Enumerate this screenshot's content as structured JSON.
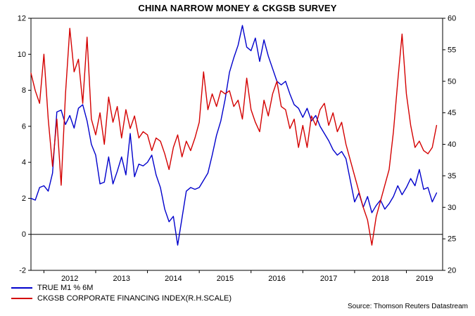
{
  "chart": {
    "title": "CHINA NARROW MONEY & CKGSB SURVEY",
    "source": "Source: Thomson Reuters Datastream"
  },
  "chart_data": {
    "type": "line",
    "title": "CHINA NARROW MONEY & CKGSB SURVEY",
    "grid": false,
    "legend_position": "bottom-left",
    "source": "Source: Thomson Reuters Datastream",
    "x_start": 2011.75,
    "x_step": 0.0833333,
    "x_range": [
      2011.75,
      2019.7
    ],
    "x_ticks": [
      2012,
      2013,
      2014,
      2015,
      2016,
      2017,
      2018,
      2019
    ],
    "left_axis": {
      "ylim": [
        -2,
        12
      ],
      "ticks": [
        -2,
        0,
        2,
        4,
        6,
        8,
        10,
        12
      ]
    },
    "right_axis": {
      "ylim": [
        20,
        60
      ],
      "ticks": [
        20,
        25,
        30,
        35,
        40,
        45,
        50,
        55,
        60
      ]
    },
    "zero_line": 0,
    "series": [
      {
        "name": "TRUE M1 % 6M",
        "axis": "left",
        "color": "#0000cc",
        "values": [
          2.0,
          1.9,
          2.6,
          2.7,
          2.4,
          3.4,
          6.8,
          6.9,
          6.1,
          6.6,
          5.9,
          7.0,
          7.2,
          6.3,
          5.0,
          4.4,
          2.8,
          2.9,
          4.3,
          2.8,
          3.5,
          4.3,
          3.3,
          5.6,
          3.2,
          3.9,
          3.8,
          4.0,
          4.4,
          3.3,
          2.6,
          1.4,
          0.7,
          1.0,
          -0.6,
          0.9,
          2.4,
          2.6,
          2.5,
          2.6,
          3.0,
          3.4,
          4.4,
          5.5,
          6.3,
          7.5,
          9.0,
          9.8,
          10.5,
          11.6,
          10.4,
          10.2,
          10.9,
          9.6,
          10.8,
          9.9,
          9.2,
          8.5,
          8.3,
          8.5,
          7.8,
          7.2,
          7.0,
          6.5,
          7.0,
          6.3,
          6.6,
          6.0,
          5.6,
          5.2,
          4.7,
          4.4,
          4.6,
          4.2,
          3.0,
          1.8,
          2.3,
          1.5,
          2.1,
          1.2,
          1.6,
          1.9,
          1.4,
          1.7,
          2.1,
          2.7,
          2.2,
          2.6,
          3.1,
          2.7,
          3.6,
          2.5,
          2.6,
          1.8,
          2.3
        ]
      },
      {
        "name": "CKGSB CORPORATE FINANCING INDEX(R.H.SCALE)",
        "axis": "right",
        "color": "#d40000",
        "values": [
          51.3,
          48.5,
          46.5,
          54.3,
          44.0,
          36.5,
          44.0,
          33.5,
          48.0,
          58.4,
          51.5,
          53.5,
          46.5,
          57.0,
          44.0,
          41.5,
          45.0,
          40.0,
          47.5,
          43.5,
          46.0,
          41.0,
          45.5,
          42.5,
          44.5,
          41.0,
          42.0,
          41.5,
          39.0,
          41.0,
          40.5,
          38.5,
          36.0,
          39.5,
          41.5,
          38.0,
          40.5,
          39.0,
          41.0,
          43.5,
          51.5,
          45.5,
          48.0,
          46.0,
          48.5,
          48.0,
          48.5,
          46.0,
          47.0,
          44.0,
          50.5,
          45.5,
          43.5,
          42.0,
          47.0,
          44.5,
          48.0,
          50.0,
          46.0,
          45.5,
          42.5,
          44.0,
          39.5,
          43.0,
          39.5,
          44.5,
          43.0,
          45.5,
          46.5,
          43.0,
          45.0,
          42.0,
          43.5,
          40.0,
          37.5,
          35.0,
          32.5,
          30.0,
          28.0,
          24.0,
          28.5,
          31.0,
          33.5,
          36.0,
          42.0,
          50.0,
          57.5,
          48.0,
          43.0,
          39.5,
          40.5,
          39.0,
          38.5,
          39.5,
          43.0
        ]
      }
    ]
  }
}
